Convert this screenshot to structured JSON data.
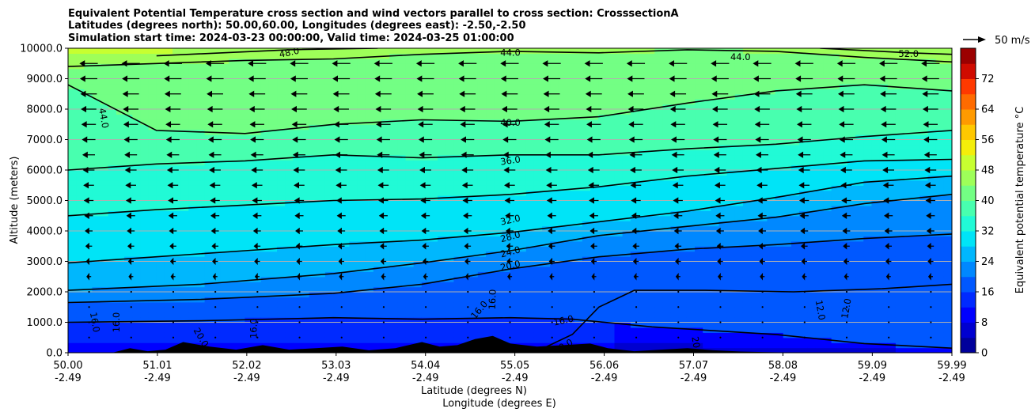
{
  "chart_data": {
    "type": "heatmap",
    "title_lines": [
      "Equivalent Potential Temperature cross section and wind vectors parallel to cross section: CrosssectionA",
      "Latitudes (degrees north): 50.00,60.00, Longitudes (degrees east): -2.50,-2.50",
      "Simulation start time: 2024-03-23 00:00:00, Valid time: 2024-03-25 01:00:00"
    ],
    "ylabel": "Altitude (meters)",
    "xlabel_1": "Latitude (degrees N)",
    "xlabel_2": "Longitude (degrees E)",
    "x_range": [
      50.0,
      59.99
    ],
    "y_range": [
      0,
      10000
    ],
    "grid": "horizontal",
    "y_ticks": [
      "0.0",
      "1000.0",
      "2000.0",
      "3000.0",
      "4000.0",
      "5000.0",
      "6000.0",
      "7000.0",
      "8000.0",
      "9000.0",
      "10000.0"
    ],
    "x_ticks": [
      {
        "lat": "50.00",
        "lon": "-2.49"
      },
      {
        "lat": "51.01",
        "lon": "-2.49"
      },
      {
        "lat": "52.02",
        "lon": "-2.49"
      },
      {
        "lat": "53.03",
        "lon": "-2.49"
      },
      {
        "lat": "54.04",
        "lon": "-2.49"
      },
      {
        "lat": "55.05",
        "lon": "-2.49"
      },
      {
        "lat": "56.06",
        "lon": "-2.49"
      },
      {
        "lat": "57.07",
        "lon": "-2.49"
      },
      {
        "lat": "58.08",
        "lon": "-2.49"
      },
      {
        "lat": "59.09",
        "lon": "-2.49"
      },
      {
        "lat": "59.99",
        "lon": "-2.49"
      }
    ],
    "colorbar": {
      "label": "Equivalent potential temperature °C",
      "range": [
        0,
        80
      ],
      "ticks": [
        "0",
        "8",
        "16",
        "24",
        "32",
        "40",
        "48",
        "56",
        "64",
        "72"
      ],
      "colors": [
        "#00007f",
        "#0000c4",
        "#0000ff",
        "#0034ff",
        "#0070ff",
        "#00acff",
        "#00e4f7",
        "#29ffce",
        "#5dff9a",
        "#94ff63",
        "#c7ff30",
        "#ffea00",
        "#ffb100",
        "#ff7700",
        "#ff3900",
        "#c40000",
        "#7f0000"
      ]
    },
    "wind_reference": "50 m/s",
    "contours": [
      {
        "level": 12,
        "points": [
          [
            59.99,
            2250
          ],
          [
            59.2,
            2100
          ],
          [
            58.2,
            2000
          ],
          [
            57.2,
            2050
          ],
          [
            56.4,
            2050
          ],
          [
            56.0,
            1500
          ],
          [
            55.7,
            600
          ],
          [
            55.3,
            50
          ]
        ]
      },
      {
        "level": 16,
        "points": [
          [
            50.0,
            1000
          ],
          [
            51.5,
            1050
          ],
          [
            53.0,
            1150
          ],
          [
            54.0,
            1100
          ],
          [
            55.0,
            1150
          ],
          [
            55.7,
            1100
          ],
          [
            56.6,
            850
          ],
          [
            58.0,
            600
          ],
          [
            59.0,
            300
          ],
          [
            59.99,
            150
          ]
        ]
      },
      {
        "level": 20,
        "points": [
          [
            50.0,
            1650
          ],
          [
            51.5,
            1750
          ],
          [
            53.0,
            1950
          ],
          [
            54.0,
            2250
          ],
          [
            55.0,
            2750
          ],
          [
            56.0,
            3150
          ],
          [
            57.0,
            3400
          ],
          [
            58.0,
            3550
          ],
          [
            59.0,
            3750
          ],
          [
            59.99,
            3900
          ]
        ]
      },
      {
        "level": 24,
        "points": [
          [
            50.0,
            2050
          ],
          [
            51.5,
            2250
          ],
          [
            53.0,
            2600
          ],
          [
            54.0,
            2950
          ],
          [
            55.0,
            3350
          ],
          [
            56.0,
            3850
          ],
          [
            57.0,
            4150
          ],
          [
            58.0,
            4450
          ],
          [
            59.0,
            4900
          ],
          [
            59.99,
            5200
          ]
        ]
      },
      {
        "level": 28,
        "points": [
          [
            50.0,
            2950
          ],
          [
            51.0,
            3150
          ],
          [
            52.0,
            3350
          ],
          [
            53.0,
            3550
          ],
          [
            54.0,
            3700
          ],
          [
            55.0,
            3950
          ],
          [
            56.0,
            4300
          ],
          [
            57.0,
            4650
          ],
          [
            58.0,
            5100
          ],
          [
            59.0,
            5600
          ],
          [
            59.99,
            5800
          ]
        ]
      },
      {
        "level": 32,
        "points": [
          [
            50.0,
            4500
          ],
          [
            51.0,
            4700
          ],
          [
            52.0,
            4850
          ],
          [
            53.0,
            5000
          ],
          [
            54.0,
            5050
          ],
          [
            55.0,
            5200
          ],
          [
            56.0,
            5450
          ],
          [
            57.0,
            5800
          ],
          [
            58.0,
            6050
          ],
          [
            59.0,
            6300
          ],
          [
            59.99,
            6350
          ]
        ]
      },
      {
        "level": 36,
        "points": [
          [
            50.0,
            6000
          ],
          [
            51.0,
            6200
          ],
          [
            52.0,
            6300
          ],
          [
            53.0,
            6500
          ],
          [
            54.0,
            6400
          ],
          [
            55.0,
            6500
          ],
          [
            56.0,
            6500
          ],
          [
            57.0,
            6700
          ],
          [
            58.0,
            6850
          ],
          [
            59.0,
            7100
          ],
          [
            59.99,
            7300
          ]
        ]
      },
      {
        "level": 40,
        "points": [
          [
            50.0,
            8800
          ],
          [
            51.0,
            7300
          ],
          [
            52.0,
            7200
          ],
          [
            53.0,
            7500
          ],
          [
            54.0,
            7650
          ],
          [
            55.0,
            7600
          ],
          [
            56.0,
            7750
          ],
          [
            57.0,
            8200
          ],
          [
            58.0,
            8600
          ],
          [
            59.0,
            8800
          ],
          [
            59.99,
            8600
          ]
        ]
      },
      {
        "level": 44,
        "points": [
          [
            50.0,
            9400
          ],
          [
            51.0,
            9500
          ],
          [
            52.0,
            9600
          ],
          [
            53.0,
            9650
          ],
          [
            54.0,
            9800
          ],
          [
            55.0,
            9900
          ],
          [
            56.0,
            9850
          ],
          [
            57.0,
            9950
          ],
          [
            58.0,
            9900
          ],
          [
            59.0,
            9700
          ],
          [
            59.99,
            9550
          ]
        ]
      },
      {
        "level": 48,
        "points": [
          [
            51.0,
            9750
          ],
          [
            52.5,
            9950
          ],
          [
            53.5,
            10000
          ]
        ]
      },
      {
        "level": 52,
        "points": [
          [
            58.5,
            10000
          ],
          [
            59.5,
            9850
          ],
          [
            59.99,
            9800
          ]
        ]
      }
    ],
    "contour_labels": [
      {
        "text": "48.0",
        "x": 52.5,
        "y": 9850,
        "angle": -12
      },
      {
        "text": "44.0",
        "x": 55.0,
        "y": 9850,
        "angle": 0
      },
      {
        "text": "44.0",
        "x": 57.6,
        "y": 9700,
        "angle": 0
      },
      {
        "text": "52.0",
        "x": 59.5,
        "y": 9800,
        "angle": 0
      },
      {
        "text": "44.0",
        "x": 50.4,
        "y": 7700,
        "angle": 80
      },
      {
        "text": "40.0",
        "x": 55.0,
        "y": 7550,
        "angle": 0
      },
      {
        "text": "36.0",
        "x": 55.0,
        "y": 6300,
        "angle": -8
      },
      {
        "text": "32.0",
        "x": 55.0,
        "y": 4350,
        "angle": -12
      },
      {
        "text": "28.0",
        "x": 55.0,
        "y": 3800,
        "angle": -15
      },
      {
        "text": "24.0",
        "x": 55.0,
        "y": 3300,
        "angle": -15
      },
      {
        "text": "20.0",
        "x": 55.0,
        "y": 2850,
        "angle": -12
      },
      {
        "text": "16.0",
        "x": 54.65,
        "y": 1400,
        "angle": -50
      },
      {
        "text": "16.0",
        "x": 54.8,
        "y": 1750,
        "angle": -88
      },
      {
        "text": "16.0",
        "x": 55.6,
        "y": 1050,
        "angle": -12
      },
      {
        "text": "12.0",
        "x": 58.5,
        "y": 1400,
        "angle": 80
      },
      {
        "text": "12.0",
        "x": 58.8,
        "y": 1450,
        "angle": -80
      },
      {
        "text": "16.0",
        "x": 50.3,
        "y": 1000,
        "angle": 80
      },
      {
        "text": "16.0",
        "x": 50.55,
        "y": 1000,
        "angle": -90
      },
      {
        "text": "20.0",
        "x": 51.5,
        "y": 500,
        "angle": 60
      },
      {
        "text": "16.0",
        "x": 52.1,
        "y": 800,
        "angle": -90
      },
      {
        "text": "20.0",
        "x": 55.6,
        "y": 200,
        "angle": -30
      },
      {
        "text": "20.0",
        "x": 57.1,
        "y": 200,
        "angle": 80
      }
    ],
    "terrain": [
      [
        50.0,
        0
      ],
      [
        50.5,
        0
      ],
      [
        50.7,
        150
      ],
      [
        50.9,
        50
      ],
      [
        51.1,
        100
      ],
      [
        51.3,
        350
      ],
      [
        51.6,
        200
      ],
      [
        51.9,
        100
      ],
      [
        52.2,
        250
      ],
      [
        52.5,
        100
      ],
      [
        52.8,
        150
      ],
      [
        53.1,
        200
      ],
      [
        53.4,
        80
      ],
      [
        53.7,
        150
      ],
      [
        54.0,
        350
      ],
      [
        54.2,
        200
      ],
      [
        54.4,
        250
      ],
      [
        54.6,
        450
      ],
      [
        54.8,
        550
      ],
      [
        55.0,
        300
      ],
      [
        55.3,
        200
      ],
      [
        55.6,
        250
      ],
      [
        55.9,
        300
      ],
      [
        56.1,
        150
      ],
      [
        56.4,
        50
      ],
      [
        56.7,
        100
      ],
      [
        57.0,
        150
      ],
      [
        57.3,
        80
      ],
      [
        57.6,
        40
      ],
      [
        57.9,
        20
      ],
      [
        58.3,
        0
      ],
      [
        59.99,
        0
      ]
    ],
    "wind_field": "westward (leftward) in-plane flow, strongest aloft (~10000 m) and weakening toward the surface"
  }
}
